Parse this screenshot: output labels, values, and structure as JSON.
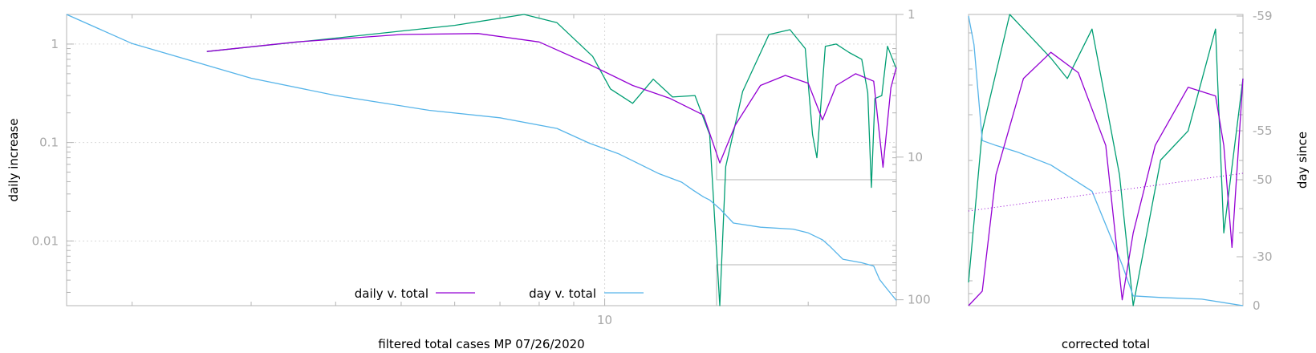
{
  "chart_data": [
    {
      "type": "line",
      "panel": "main",
      "xlabel": "filtered total cases MP 07/26/2020",
      "ylabel": "daily increase",
      "y2label": "",
      "xscale": "log",
      "yscale": "log",
      "y2scale": "log-reversed",
      "xlim": [
        1.6,
        27
      ],
      "ylim": [
        0.0022,
        2
      ],
      "y2lim": [
        1,
        110
      ],
      "x_ticks": [
        "10"
      ],
      "y_ticks": [
        "1",
        "0.1",
        "0.01"
      ],
      "y2_ticks": [
        "1",
        "10",
        "100"
      ],
      "grid": true,
      "legend": "bottom-center",
      "colors": {
        "daily_v_total": "#9400d3",
        "day_v_total": "#56b4e9",
        "raw": "#009e73"
      },
      "series": [
        {
          "name": "daily v. total",
          "axis": "y",
          "x": [
            2.58,
            3.5,
            5.0,
            6.5,
            8.0,
            9.5,
            11.0,
            12.5,
            14.0,
            14.8,
            15.6,
            17.0,
            18.5,
            20.0,
            21.0,
            22.0,
            23.5,
            25.0,
            25.8,
            26.5,
            27.0
          ],
          "y": [
            0.84,
            1.05,
            1.25,
            1.28,
            1.05,
            0.62,
            0.38,
            0.28,
            0.19,
            0.062,
            0.15,
            0.38,
            0.48,
            0.4,
            0.17,
            0.38,
            0.5,
            0.42,
            0.056,
            0.36,
            0.58
          ]
        },
        {
          "name": "day v. total",
          "axis": "y2",
          "x": [
            1.6,
            2.0,
            3.0,
            4.0,
            5.5,
            7.0,
            8.5,
            9.5,
            10.5,
            11.0,
            12.0,
            13.0,
            13.5,
            14.0,
            14.3,
            14.8,
            15.5,
            17.0,
            19.0,
            20.0,
            21.0,
            21.5,
            22.5,
            24.0,
            25.0,
            25.5,
            26.0,
            27.0
          ],
          "y": [
            1.0,
            1.6,
            2.8,
            3.7,
            4.7,
            5.3,
            6.3,
            8.0,
            9.5,
            10.6,
            13.0,
            15.0,
            17.0,
            19.0,
            20.0,
            23.0,
            29.0,
            31.0,
            32.0,
            34.0,
            38.0,
            42.0,
            52.0,
            55.0,
            58.0,
            72.0,
            81.0,
            101.0
          ]
        },
        {
          "name": "",
          "axis": "y",
          "x": [
            2.58,
            4.0,
            6.0,
            7.6,
            8.5,
            9.6,
            10.2,
            11.0,
            11.8,
            12.6,
            13.6,
            14.3,
            14.8,
            15.1,
            16.0,
            17.5,
            18.8,
            19.8,
            20.3,
            20.6,
            21.2,
            22.0,
            23.0,
            24.0,
            24.5,
            24.8,
            25.1,
            25.7,
            26.2,
            27.0
          ],
          "y": [
            0.84,
            1.15,
            1.55,
            2.0,
            1.65,
            0.75,
            0.35,
            0.25,
            0.44,
            0.29,
            0.3,
            0.12,
            0.0022,
            0.057,
            0.33,
            1.25,
            1.4,
            0.9,
            0.12,
            0.07,
            0.95,
            1.0,
            0.82,
            0.7,
            0.32,
            0.035,
            0.28,
            0.3,
            0.95,
            0.56
          ]
        }
      ],
      "annotations": [
        "10",
        "100",
        "1"
      ]
    },
    {
      "type": "line",
      "panel": "right",
      "xlabel": "corrected total",
      "ylabel": "",
      "y2label": "day since",
      "y2_ticks": [
        "-59",
        "-55",
        "-50",
        "-30",
        "0"
      ],
      "legend": "none",
      "series": [
        {
          "name": "",
          "x": [
            0.0,
            0.05,
            0.1,
            0.2,
            0.3,
            0.4,
            0.5,
            0.56,
            0.6,
            0.68,
            0.8,
            0.9,
            0.93,
            0.96,
            1.0
          ],
          "y": [
            0.0,
            0.05,
            0.45,
            0.78,
            0.87,
            0.8,
            0.55,
            0.02,
            0.25,
            0.55,
            0.75,
            0.72,
            0.55,
            0.2,
            0.78
          ]
        },
        {
          "name": "",
          "x": [
            0.0,
            0.02,
            0.05,
            0.1,
            0.18,
            0.3,
            0.45,
            0.56,
            0.6,
            0.7,
            0.85,
            1.0
          ],
          "y": [
            -59,
            -58,
            -54,
            -53.5,
            -52.8,
            -51.5,
            -47,
            -25,
            -6,
            -5,
            -4,
            0
          ]
        },
        {
          "name": "",
          "x": [
            0.0,
            0.05,
            0.15,
            0.3,
            0.36,
            0.45,
            0.55,
            0.6,
            0.7,
            0.8,
            0.9,
            0.93,
            1.0
          ],
          "y": [
            0.08,
            0.6,
            1.0,
            0.85,
            0.78,
            0.95,
            0.45,
            0.0,
            0.5,
            0.6,
            0.95,
            0.25,
            0.78
          ]
        }
      ]
    }
  ]
}
